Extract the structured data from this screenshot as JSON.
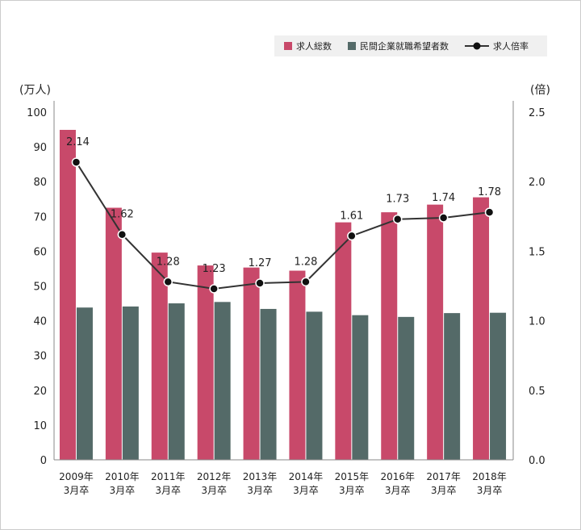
{
  "chart_data": {
    "type": "bar+line",
    "categories": [
      [
        "2009年",
        "3月卒"
      ],
      [
        "2010年",
        "3月卒"
      ],
      [
        "2011年",
        "3月卒"
      ],
      [
        "2012年",
        "3月卒"
      ],
      [
        "2013年",
        "3月卒"
      ],
      [
        "2014年",
        "3月卒"
      ],
      [
        "2015年",
        "3月卒"
      ],
      [
        "2016年",
        "3月卒"
      ],
      [
        "2017年",
        "3月卒"
      ],
      [
        "2018年",
        "3月卒"
      ]
    ],
    "series": [
      {
        "name": "求人総数",
        "type": "bar",
        "axis": "left",
        "color": "#c8496a",
        "values": [
          94.9,
          72.5,
          59.6,
          55.9,
          55.3,
          54.4,
          68.3,
          71.2,
          73.4,
          75.5
        ]
      },
      {
        "name": "民間企業就職希望者数",
        "type": "bar",
        "axis": "left",
        "color": "#546a68",
        "values": [
          43.8,
          44.1,
          45.0,
          45.4,
          43.4,
          42.6,
          41.6,
          41.1,
          42.2,
          42.3
        ]
      },
      {
        "name": "求人倍率",
        "type": "line",
        "axis": "right",
        "color": "#333333",
        "values": [
          2.14,
          1.62,
          1.28,
          1.23,
          1.27,
          1.28,
          1.61,
          1.73,
          1.74,
          1.78
        ]
      }
    ],
    "left_axis": {
      "unit": "(万人)",
      "min": 0,
      "max": 100,
      "ticks": [
        0,
        10,
        20,
        30,
        40,
        50,
        60,
        70,
        80,
        90,
        100
      ]
    },
    "right_axis": {
      "unit": "(倍)",
      "min": 0,
      "max": 2.5,
      "ticks": [
        "0.0",
        "0.5",
        "1.0",
        "1.5",
        "2.0",
        "2.5"
      ]
    },
    "legend_position": "top-right"
  }
}
